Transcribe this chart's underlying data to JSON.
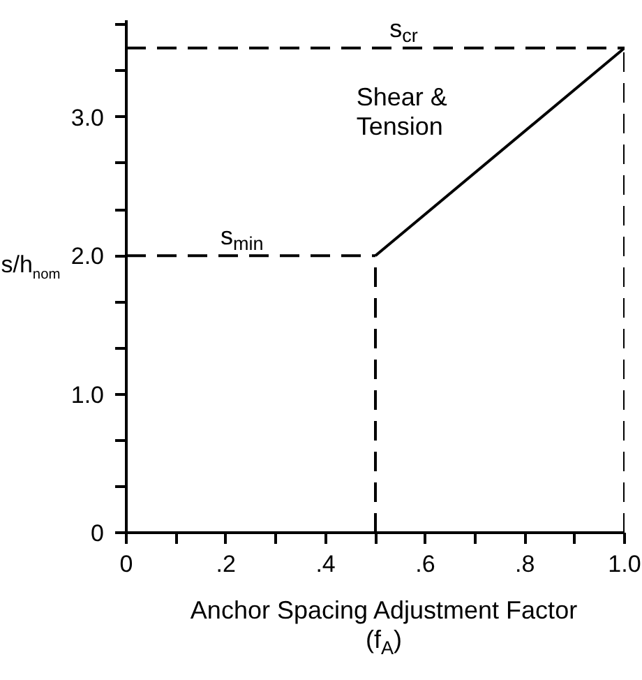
{
  "chart_data": {
    "type": "line",
    "xlabel": "Anchor Spacing Adjustment Factor\n(f$_{A}$)",
    "ylabel": "s/h$_{nom}$",
    "xlim": [
      0,
      1.0
    ],
    "ylim": [
      0,
      3.7
    ],
    "xticks": [
      0,
      {
        "value": 0.1,
        "label": null
      },
      {
        "value": 0.2,
        "label": ".2"
      },
      {
        "value": 0.3,
        "label": null
      },
      {
        "value": 0.4,
        "label": ".4"
      },
      {
        "value": 0.5,
        "label": null
      },
      {
        "value": 0.6,
        "label": ".6"
      },
      {
        "value": 0.7,
        "label": null
      },
      {
        "value": 0.8,
        "label": ".8"
      },
      {
        "value": 0.9,
        "label": null
      },
      {
        "value": 1.0,
        "label": "1.0"
      }
    ],
    "yticks": [
      0,
      {
        "value": 0.333,
        "label": null
      },
      {
        "value": 0.667,
        "label": null
      },
      {
        "value": 1,
        "label": "1.0"
      },
      {
        "value": 1.333,
        "label": null
      },
      {
        "value": 1.667,
        "label": null
      },
      {
        "value": 2,
        "label": "2.0"
      },
      {
        "value": 2.333,
        "label": null
      },
      {
        "value": 2.667,
        "label": null
      },
      {
        "value": 3,
        "label": "3.0"
      },
      {
        "value": 3.333,
        "label": null
      },
      {
        "value": 3.667,
        "label": null
      }
    ],
    "series": [
      {
        "color": "#000000",
        "line_style": "dashed",
        "x": [
          0,
          0.5
        ],
        "values": [
          2.0,
          2.0
        ]
      },
      {
        "color": "#000000",
        "line_style": "dashed",
        "x": [
          0.5,
          0.5
        ],
        "values": [
          0,
          2.0
        ]
      },
      {
        "color": "#000000",
        "line_style": "dashed",
        "x": [
          0,
          1.0
        ],
        "values": [
          3.5,
          3.5
        ]
      },
      {
        "color": "#000000",
        "line_style": "dashed",
        "x": [
          1.0,
          1.0
        ],
        "values": [
          0,
          3.5
        ]
      },
      {
        "color": "#000000",
        "line_style": "solid",
        "x": [
          0.5,
          1.0
        ],
        "values": [
          2.0,
          3.5
        ]
      }
    ],
    "annotations": [
      {
        "text": "s$_{min}$",
        "x": 0.23,
        "y": 2.0
      },
      {
        "text": "s$_{cr}$",
        "x": 0.56,
        "y": 3.5
      },
      "Shear &\nTension"
    ],
    "grid": false
  }
}
